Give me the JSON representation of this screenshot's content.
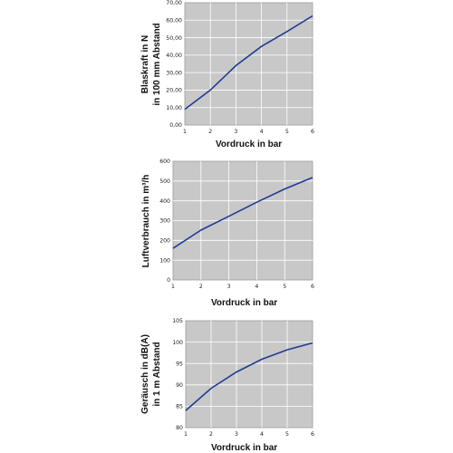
{
  "colors": {
    "line": "#1f3c96",
    "plot_bg": "#c8c8c8",
    "grid": "#ffffff"
  },
  "chart_data": [
    {
      "type": "line",
      "xlabel": "Vordruck in bar",
      "ylabel_lines": [
        "Blaskraft in N",
        "in 100 mm Abstand"
      ],
      "x_ticks": [
        "1",
        "2",
        "3",
        "4",
        "5",
        "6"
      ],
      "y_ticks": [
        "0,00",
        "10,00",
        "20,00",
        "30,00",
        "40,00",
        "50,00",
        "60,00",
        "70,00"
      ],
      "xlim": [
        1,
        6
      ],
      "ylim": [
        0,
        70
      ],
      "grid": true,
      "series": [
        {
          "x": [
            1,
            2,
            3,
            4,
            5,
            6
          ],
          "values": [
            9,
            20,
            34,
            45,
            53.5,
            62.5
          ]
        }
      ]
    },
    {
      "type": "line",
      "xlabel": "Vordruck in bar",
      "ylabel_lines": [
        "Luftverbrauch in m³/h"
      ],
      "x_ticks": [
        "1",
        "2",
        "3",
        "4",
        "5",
        "6"
      ],
      "y_ticks": [
        "0",
        "100",
        "200",
        "300",
        "400",
        "500",
        "600"
      ],
      "xlim": [
        1,
        6
      ],
      "ylim": [
        0,
        600
      ],
      "grid": true,
      "series": [
        {
          "x": [
            1,
            2,
            3,
            4,
            5,
            6
          ],
          "values": [
            160,
            252,
            322,
            393,
            460,
            518
          ]
        }
      ]
    },
    {
      "type": "line",
      "xlabel": "Vordruck in bar",
      "ylabel_lines": [
        "Geräusch in dB(A)",
        "in 1 m Abstand"
      ],
      "x_ticks": [
        "1",
        "2",
        "3",
        "4",
        "5",
        "6"
      ],
      "y_ticks": [
        "80",
        "85",
        "90",
        "95",
        "100",
        "105"
      ],
      "xlim": [
        1,
        6
      ],
      "ylim": [
        80,
        105
      ],
      "grid": true,
      "series": [
        {
          "x": [
            1,
            2,
            3,
            4,
            5,
            6
          ],
          "values": [
            84,
            89.2,
            93,
            96,
            98.2,
            99.8
          ]
        }
      ]
    }
  ]
}
